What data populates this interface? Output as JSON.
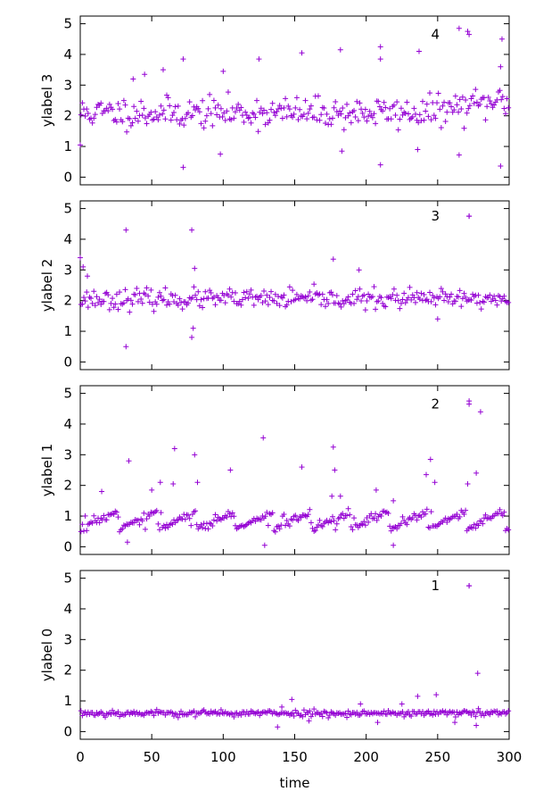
{
  "chart_data": {
    "type": "scatter",
    "xlabel": "time",
    "xlim": [
      0,
      300
    ],
    "x_ticks": [
      0,
      50,
      100,
      150,
      200,
      250,
      300
    ],
    "marker": "+",
    "marker_color": "#9400d3",
    "legend_position": "top-right",
    "panels": [
      {
        "ylabel": "ylabel 3",
        "ylim": [
          -0.25,
          5.25
        ],
        "y_ticks": [
          0,
          1,
          2,
          3,
          4,
          5
        ],
        "legend_label": "4",
        "legend_marker_x": 272,
        "legend_marker_y": 4.65,
        "highlights": [
          [
            0,
            1.05
          ],
          [
            72,
            0.32
          ],
          [
            98,
            0.75
          ],
          [
            72,
            3.85
          ],
          [
            100,
            3.45
          ],
          [
            125,
            3.85
          ],
          [
            155,
            4.05
          ],
          [
            182,
            4.15
          ],
          [
            210,
            4.25
          ],
          [
            210,
            3.85
          ],
          [
            237,
            4.1
          ],
          [
            265,
            4.85
          ],
          [
            271,
            4.75
          ],
          [
            295,
            4.5
          ],
          [
            294,
            3.6
          ],
          [
            183,
            0.85
          ],
          [
            210,
            0.4
          ],
          [
            236,
            0.9
          ],
          [
            265,
            0.72
          ],
          [
            294,
            0.36
          ],
          [
            58,
            3.5
          ],
          [
            37,
            3.2
          ],
          [
            45,
            3.35
          ]
        ],
        "baseline": {
          "type": "noise",
          "mean": 2.1,
          "spread": 0.55,
          "count": 300,
          "seed": 11,
          "trend_end": 2.5
        }
      },
      {
        "ylabel": "ylabel 2",
        "ylim": [
          -0.25,
          5.25
        ],
        "y_ticks": [
          0,
          1,
          2,
          3,
          4,
          5
        ],
        "legend_label": "3",
        "legend_marker_x": 272,
        "legend_marker_y": 4.75,
        "highlights": [
          [
            0,
            3.4
          ],
          [
            2,
            3.1
          ],
          [
            5,
            2.8
          ],
          [
            32,
            4.3
          ],
          [
            32,
            0.5
          ],
          [
            78,
            4.3
          ],
          [
            78,
            0.8
          ],
          [
            79,
            1.1
          ],
          [
            80,
            3.05
          ],
          [
            177,
            3.35
          ],
          [
            195,
            3.0
          ],
          [
            272,
            4.75
          ],
          [
            250,
            1.4
          ]
        ],
        "baseline": {
          "type": "noise",
          "mean": 2.05,
          "spread": 0.35,
          "count": 300,
          "seed": 23,
          "trend_end": 2.05
        }
      },
      {
        "ylabel": "ylabel 1",
        "ylim": [
          -0.25,
          5.25
        ],
        "y_ticks": [
          0,
          1,
          2,
          3,
          4,
          5
        ],
        "legend_label": "2",
        "legend_marker_x": 272,
        "legend_marker_y": 4.65,
        "highlights": [
          [
            34,
            2.8
          ],
          [
            50,
            1.85
          ],
          [
            56,
            2.1
          ],
          [
            66,
            3.2
          ],
          [
            65,
            2.05
          ],
          [
            80,
            3.0
          ],
          [
            82,
            2.1
          ],
          [
            105,
            2.5
          ],
          [
            128,
            3.55
          ],
          [
            155,
            2.6
          ],
          [
            177,
            3.25
          ],
          [
            178,
            2.5
          ],
          [
            176,
            1.65
          ],
          [
            182,
            1.65
          ],
          [
            207,
            1.85
          ],
          [
            219,
            1.5
          ],
          [
            242,
            2.35
          ],
          [
            245,
            2.85
          ],
          [
            248,
            2.1
          ],
          [
            272,
            4.75
          ],
          [
            280,
            4.4
          ],
          [
            271,
            2.05
          ],
          [
            277,
            2.4
          ],
          [
            15,
            1.8
          ],
          [
            129,
            0.05
          ],
          [
            33,
            0.15
          ],
          [
            219,
            0.05
          ]
        ],
        "baseline": {
          "type": "sawtooth",
          "low": 0.55,
          "high": 1.15,
          "period": 27,
          "count": 300,
          "seed": 37
        }
      },
      {
        "ylabel": "ylabel 0",
        "ylim": [
          -0.25,
          5.25
        ],
        "y_ticks": [
          0,
          1,
          2,
          3,
          4,
          5
        ],
        "legend_label": "1",
        "legend_marker_x": 272,
        "legend_marker_y": 4.75,
        "highlights": [
          [
            272,
            4.75
          ],
          [
            278,
            1.9
          ],
          [
            277,
            0.2
          ],
          [
            138,
            0.15
          ],
          [
            148,
            1.05
          ],
          [
            236,
            1.15
          ],
          [
            249,
            1.2
          ],
          [
            262,
            0.3
          ],
          [
            225,
            0.9
          ],
          [
            196,
            0.9
          ],
          [
            208,
            0.3
          ],
          [
            160,
            0.35
          ],
          [
            141,
            0.8
          ]
        ],
        "baseline": {
          "type": "noise",
          "mean": 0.6,
          "spread": 0.12,
          "count": 300,
          "seed": 53,
          "trend_end": 0.6
        }
      }
    ]
  }
}
